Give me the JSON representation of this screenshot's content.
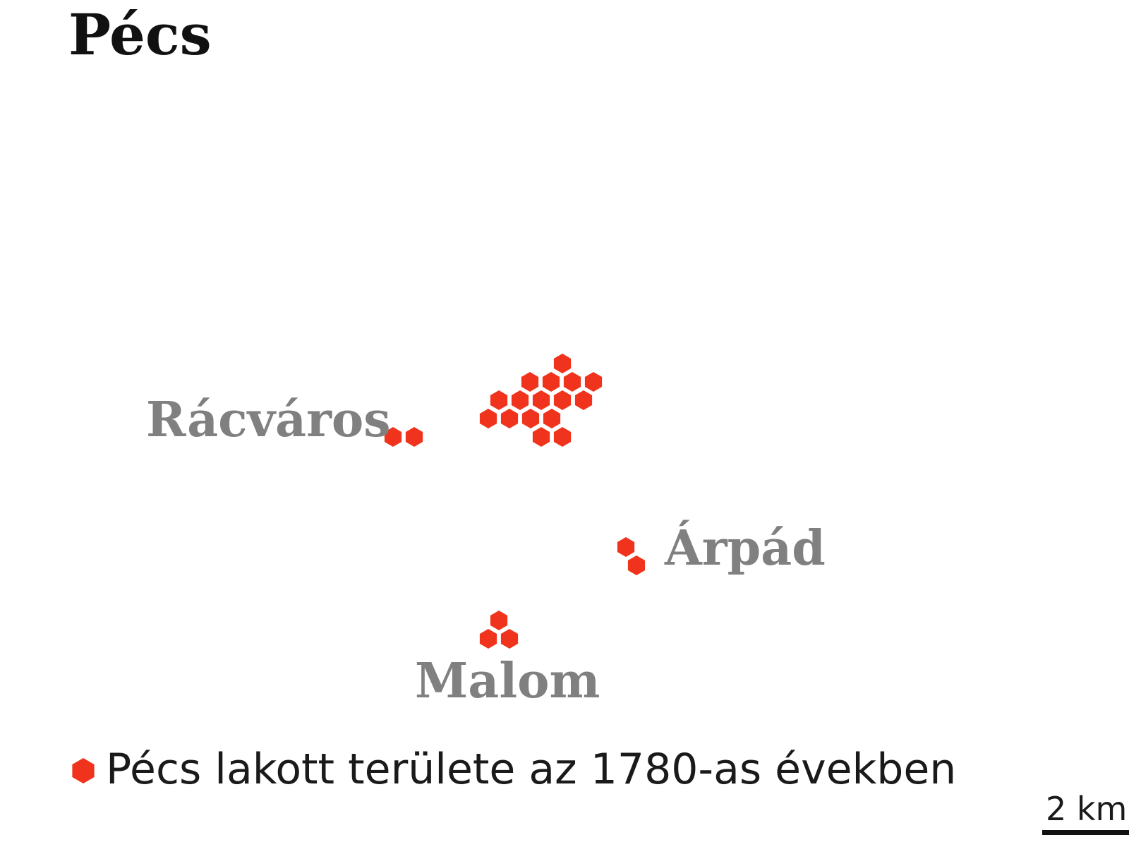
{
  "title": "Pécs",
  "colors": {
    "settlement": "#f0331d",
    "place_label": "#808080",
    "text": "#1a1a1a"
  },
  "places": [
    {
      "name": "Rácváros"
    },
    {
      "name": "Árpád"
    },
    {
      "name": "Malom"
    }
  ],
  "legend": {
    "icon": "hexagon-icon",
    "label": "Pécs lakott területe az 1780-as években"
  },
  "scale_bar": {
    "label": "2 km"
  }
}
